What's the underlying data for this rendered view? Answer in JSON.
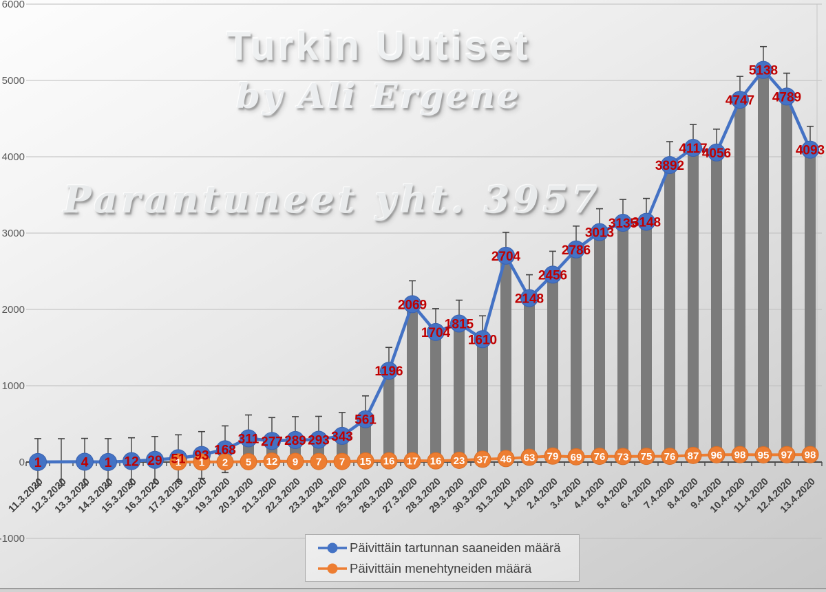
{
  "watermark": {
    "title": "Turkin Uutiset",
    "subtitle": "by Ali Ergene",
    "note": "Parantuneet yht. 3957"
  },
  "colors": {
    "infections": "#4472C4",
    "infections_edge": "#3A62AE",
    "deaths": "#ED7D31",
    "deaths_edge": "#D96F28",
    "bars": "#7B7B7B",
    "infection_labels": "#C00000",
    "death_labels": "#FFFFFF",
    "axis": "#4A4A4A",
    "grid": "#BDBDBD",
    "error_bars": "#404040"
  },
  "chart_data": {
    "type": "line",
    "title": "",
    "xlabel": "",
    "ylabel": "",
    "categories": [
      "11.3.2020",
      "12.3.2020",
      "13.3.2020",
      "14.3.2020",
      "15.3.2020",
      "16.3.2020",
      "17.3.2020",
      "18.3.2020",
      "19.3.2020",
      "20.3.2020",
      "21.3.2020",
      "22.3.2020",
      "23.3.2020",
      "24.3.2020",
      "25.3.2020",
      "26.3.2020",
      "27.3.2020",
      "28.3.2020",
      "29.3.2020",
      "30.3.2020",
      "31.3.2020",
      "1.4.2020",
      "2.4.2020",
      "3.4.2020",
      "4.4.2020",
      "5.4.2020",
      "6.4.2020",
      "7.4.2020",
      "8.4.2020",
      "9.4.2020",
      "10.4.2020",
      "11.4.2020",
      "12.4.2020",
      "13.4.2020"
    ],
    "series": [
      {
        "name": "Päivittäin tartunnan saaneiden määrä",
        "type": "line+bar",
        "color": "#4472C4",
        "bar_color": "#7B7B7B",
        "label_color": "#C00000",
        "values": [
          1,
          null,
          4,
          1,
          12,
          29,
          51,
          93,
          168,
          311,
          277,
          289,
          293,
          343,
          561,
          1196,
          2069,
          1704,
          1815,
          1610,
          2704,
          2148,
          2456,
          2786,
          3013,
          3135,
          3148,
          3892,
          4117,
          4056,
          4747,
          5138,
          4789,
          4093
        ]
      },
      {
        "name": "Päivittäin menehtyneiden määrä",
        "type": "line",
        "color": "#ED7D31",
        "label_color": "#FFFFFF",
        "values": [
          null,
          null,
          null,
          null,
          null,
          null,
          1,
          1,
          2,
          5,
          12,
          9,
          7,
          7,
          15,
          16,
          17,
          16,
          23,
          37,
          46,
          63,
          79,
          69,
          76,
          73,
          75,
          76,
          87,
          96,
          98,
          95,
          97,
          98
        ]
      }
    ],
    "ylim": [
      -1000,
      6000
    ],
    "yticks": [
      -1000,
      0,
      1000,
      2000,
      3000,
      4000,
      5000,
      6000
    ],
    "error_bar_half": 306,
    "grid": true,
    "legend_position": "bottom",
    "data_labels": "center"
  }
}
